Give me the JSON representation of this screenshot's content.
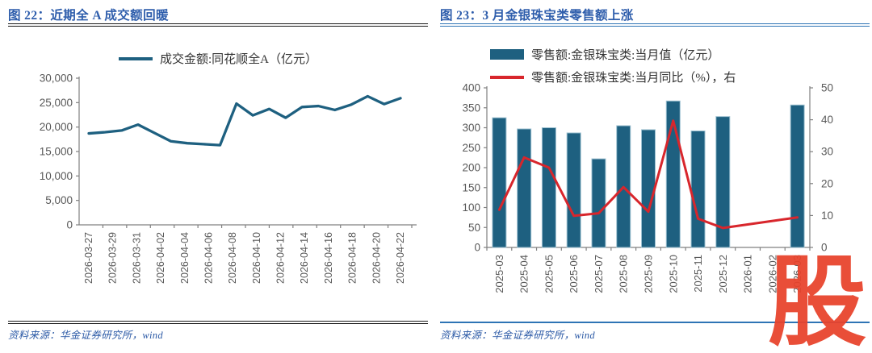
{
  "left_panel": {
    "title": "图 22：近期全 A 成交额回暖",
    "legend": "成交金额:同花顺全A（亿元）",
    "source": "资料来源：华金证券研究所，wind"
  },
  "right_panel": {
    "title": "图 23：3 月金银珠宝类零售额上涨",
    "legend_bar": "零售额:金银珠宝类:当月值（亿元）",
    "legend_line": "零售额:金银珠宝类:当月同比（%），右",
    "source": "资料来源：华金证券研究所，wind"
  },
  "watermark": {
    "text": "股"
  },
  "colors": {
    "teal": "#1E6080",
    "teal_edge": "#9CC0D0",
    "red": "#D8262C",
    "title_blue": "#2F5EAC",
    "rule_blue": "#2E74B5",
    "rule_dark": "#1A1A1A",
    "axis_line": "#808080",
    "axis_text": "#595959",
    "watermark_red": "#E8432C"
  },
  "chart_data": [
    {
      "type": "line",
      "title": "近期全 A 成交额回暖",
      "series_name": "成交金额:同花顺全A（亿元）",
      "x_tick_labels": [
        "2026-03-27",
        "2026-03-29",
        "2026-03-31",
        "2026-04-02",
        "2026-04-04",
        "2026-04-06",
        "2026-04-08",
        "2026-04-10",
        "2026-04-12",
        "2026-04-14",
        "2026-04-16",
        "2026-04-18",
        "2026-04-20",
        "2026-04-22"
      ],
      "values": [
        18700,
        18950,
        19300,
        20500,
        18800,
        17100,
        16700,
        16500,
        16300,
        24800,
        22400,
        23700,
        21900,
        24100,
        24300,
        23500,
        24600,
        26300,
        24700,
        25900
      ],
      "ylim": [
        0,
        30000
      ],
      "ytick_step": 5000,
      "grid": false,
      "legend_position": "top"
    },
    {
      "type": "bar",
      "title": "3 月金银珠宝类零售额上涨",
      "categories": [
        "2025-03",
        "2025-04",
        "2025-05",
        "2025-06",
        "2025-07",
        "2025-08",
        "2025-09",
        "2025-10",
        "2025-11",
        "2025-12",
        "2026-01",
        "2026-02",
        "2026-03"
      ],
      "series": [
        {
          "name": "零售额:金银珠宝类:当月值（亿元）",
          "type": "bar",
          "axis": "left",
          "values": [
            325,
            297,
            300,
            287,
            222,
            305,
            295,
            367,
            292,
            328,
            null,
            null,
            357
          ]
        },
        {
          "name": "零售额:金银珠宝类:当月同比（%），右",
          "type": "line",
          "axis": "right",
          "values": [
            11.8,
            28.2,
            25.0,
            9.9,
            10.7,
            18.9,
            11.2,
            39.7,
            9.0,
            6.1,
            null,
            null,
            9.4
          ]
        }
      ],
      "left_ylim": [
        0,
        400
      ],
      "left_ytick_step": 50,
      "right_ylim": [
        0,
        50
      ],
      "right_ytick_step": 10,
      "grid": false,
      "legend_position": "top"
    }
  ]
}
